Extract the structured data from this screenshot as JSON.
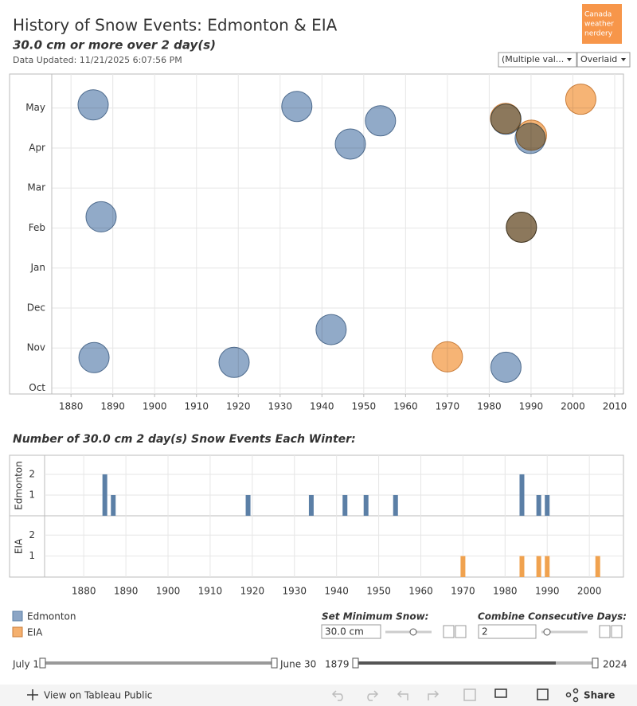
{
  "header": {
    "title": "History of Snow Events: Edmonton & EIA",
    "subtitle": "30.0 cm or more over 2 day(s)",
    "updated": "Data Updated: 11/21/2025 6:07:56 PM",
    "logo": [
      "Canada",
      "weather",
      "nerdery"
    ]
  },
  "filters": {
    "stations": "(Multiple val...",
    "mode": "Overlaid"
  },
  "chart_data": [
    {
      "type": "scatter",
      "xlim": [
        1875.4,
        2012.1
      ],
      "ylim": [
        -0.15,
        7.85
      ],
      "xticks": [
        1880,
        1890,
        1900,
        1910,
        1920,
        1930,
        1940,
        1950,
        1960,
        1970,
        1980,
        1990,
        2000,
        2010
      ],
      "yticks": [
        {
          "value": 0,
          "label": "Oct"
        },
        {
          "value": 1,
          "label": "Nov"
        },
        {
          "value": 2,
          "label": "Dec"
        },
        {
          "value": 3,
          "label": "Jan"
        },
        {
          "value": 4,
          "label": "Feb"
        },
        {
          "value": 5,
          "label": "Mar"
        },
        {
          "value": 6,
          "label": "Apr"
        },
        {
          "value": 7,
          "label": "May"
        }
      ],
      "grid": true,
      "series": [
        {
          "name": "EIA",
          "color": "#f5b06e",
          "x": [
            1970.0,
            2001.9,
            1983.9,
            1990.1,
            1987.7
          ],
          "values": [
            0.78,
            7.22,
            6.74,
            6.32,
            4.02
          ]
        },
        {
          "name": "Edmonton",
          "color": "#8ba5c5",
          "x": [
            1885.3,
            1887.2,
            1885.5,
            1919.0,
            1934.0,
            1942.2,
            1946.8,
            1954.0,
            1984.0,
            1984.0,
            1989.8,
            1987.7
          ],
          "values": [
            7.08,
            4.28,
            0.76,
            0.64,
            7.04,
            1.46,
            6.1,
            6.68,
            6.72,
            0.52,
            6.24,
            4.02
          ]
        }
      ]
    },
    {
      "type": "bar",
      "title": "Number of 30.0 cm 2 day(s) Snow Events Each Winter:",
      "xlim": [
        1870.7,
        2008.1
      ],
      "ylim": [
        0,
        2.92
      ],
      "xticks": [
        1880,
        1890,
        1900,
        1910,
        1920,
        1930,
        1940,
        1950,
        1960,
        1970,
        1980,
        1990,
        2000
      ],
      "yticks": [
        1,
        2
      ],
      "series": [
        {
          "name": "Edmonton",
          "color": "#5b7fa6",
          "x": [
            1885,
            1887,
            1919,
            1934,
            1942,
            1947,
            1954,
            1984,
            1988,
            1990
          ],
          "values": [
            2,
            1,
            1,
            1,
            1,
            1,
            1,
            2,
            1,
            1
          ]
        },
        {
          "name": "EIA",
          "color": "#f0a24f",
          "x": [
            1970,
            1984,
            1988,
            1990,
            2002
          ],
          "values": [
            1,
            1,
            1,
            1,
            1
          ]
        }
      ]
    }
  ],
  "controls": {
    "min_snow_label": "Set Minimum Snow:",
    "min_snow": "30.0 cm",
    "days_label": "Combine Consecutive Days:",
    "days": "2",
    "season_start": "July 1",
    "season_end": "June 30",
    "year_start": "1879",
    "year_end": "2024"
  },
  "footer": {
    "view": "View on Tableau Public",
    "share": "Share"
  }
}
